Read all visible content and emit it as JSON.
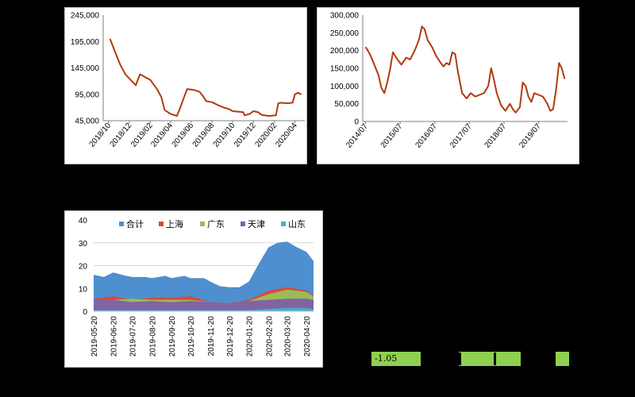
{
  "chart_data": [
    {
      "type": "line",
      "ylim": [
        45000,
        245000
      ],
      "y_ticks": [
        "245,000",
        "195,000",
        "145,000",
        "95,000",
        "45,000"
      ],
      "x_ticks": [
        "2018/10",
        "2018/12",
        "2019/02",
        "2019/04",
        "2019/06",
        "2019/08",
        "2019/10",
        "2019/12",
        "2020/02",
        "2020/04"
      ],
      "series": [
        {
          "color": "#b23a0e",
          "values": [
            [
              "2018-10-05",
              200000
            ],
            [
              "2018-10-20",
              175000
            ],
            [
              "2018-11-05",
              150000
            ],
            [
              "2018-11-20",
              132000
            ],
            [
              "2018-12-05",
              122000
            ],
            [
              "2018-12-20",
              112000
            ],
            [
              "2019-01-01",
              133000
            ],
            [
              "2019-01-15",
              128000
            ],
            [
              "2019-02-01",
              122000
            ],
            [
              "2019-02-20",
              105000
            ],
            [
              "2019-03-05",
              90000
            ],
            [
              "2019-03-15",
              65000
            ],
            [
              "2019-04-01",
              58000
            ],
            [
              "2019-04-20",
              54000
            ],
            [
              "2019-05-01",
              72000
            ],
            [
              "2019-05-10",
              88000
            ],
            [
              "2019-05-20",
              105000
            ],
            [
              "2019-06-10",
              103000
            ],
            [
              "2019-06-25",
              100000
            ],
            [
              "2019-07-05",
              92000
            ],
            [
              "2019-07-15",
              82000
            ],
            [
              "2019-08-01",
              80000
            ],
            [
              "2019-08-20",
              74000
            ],
            [
              "2019-09-05",
              70000
            ],
            [
              "2019-09-20",
              67000
            ],
            [
              "2019-10-01",
              63000
            ],
            [
              "2019-10-20",
              62000
            ],
            [
              "2019-11-01",
              61000
            ],
            [
              "2019-11-05",
              55000
            ],
            [
              "2019-11-20",
              58000
            ],
            [
              "2019-12-01",
              63000
            ],
            [
              "2019-12-15",
              61000
            ],
            [
              "2019-12-25",
              56000
            ],
            [
              "2020-01-15",
              54000
            ],
            [
              "2020-02-05",
              55000
            ],
            [
              "2020-02-12",
              78000
            ],
            [
              "2020-02-20",
              79000
            ],
            [
              "2020-03-10",
              78000
            ],
            [
              "2020-03-25",
              79000
            ],
            [
              "2020-04-01",
              95000
            ],
            [
              "2020-04-10",
              98000
            ],
            [
              "2020-04-20",
              95000
            ]
          ]
        }
      ]
    },
    {
      "type": "line",
      "ylim": [
        0,
        300000
      ],
      "y_ticks": [
        "300,000",
        "250,000",
        "200,000",
        "150,000",
        "100,000",
        "50,000",
        "0"
      ],
      "x_ticks": [
        "2014/07",
        "2015/07",
        "2016/07",
        "2017/07",
        "2018/07",
        "2019/07"
      ],
      "series": [
        {
          "color": "#b23a0e",
          "values": [
            [
              "2014-07-01",
              210000
            ],
            [
              "2014-08-15",
              190000
            ],
            [
              "2014-10-01",
              160000
            ],
            [
              "2014-11-15",
              130000
            ],
            [
              "2014-12-15",
              95000
            ],
            [
              "2015-01-15",
              80000
            ],
            [
              "2015-02-15",
              110000
            ],
            [
              "2015-03-15",
              145000
            ],
            [
              "2015-04-15",
              195000
            ],
            [
              "2015-06-01",
              175000
            ],
            [
              "2015-07-15",
              160000
            ],
            [
              "2015-09-01",
              180000
            ],
            [
              "2015-10-15",
              175000
            ],
            [
              "2015-12-01",
              200000
            ],
            [
              "2016-01-15",
              230000
            ],
            [
              "2016-02-15",
              268000
            ],
            [
              "2016-03-15",
              260000
            ],
            [
              "2016-04-15",
              230000
            ],
            [
              "2016-06-01",
              210000
            ],
            [
              "2016-07-15",
              185000
            ],
            [
              "2016-09-01",
              165000
            ],
            [
              "2016-10-01",
              155000
            ],
            [
              "2016-11-01",
              165000
            ],
            [
              "2016-12-01",
              160000
            ],
            [
              "2017-01-01",
              195000
            ],
            [
              "2017-02-01",
              190000
            ],
            [
              "2017-03-01",
              140000
            ],
            [
              "2017-04-15",
              80000
            ],
            [
              "2017-06-01",
              65000
            ],
            [
              "2017-07-15",
              80000
            ],
            [
              "2017-09-01",
              70000
            ],
            [
              "2017-10-15",
              75000
            ],
            [
              "2017-12-01",
              80000
            ],
            [
              "2018-01-15",
              100000
            ],
            [
              "2018-02-15",
              150000
            ],
            [
              "2018-03-15",
              120000
            ],
            [
              "2018-04-15",
              80000
            ],
            [
              "2018-06-01",
              45000
            ],
            [
              "2018-07-15",
              30000
            ],
            [
              "2018-09-01",
              50000
            ],
            [
              "2018-10-01",
              35000
            ],
            [
              "2018-11-01",
              25000
            ],
            [
              "2018-12-15",
              40000
            ],
            [
              "2019-01-15",
              110000
            ],
            [
              "2019-02-15",
              100000
            ],
            [
              "2019-03-15",
              70000
            ],
            [
              "2019-04-15",
              55000
            ],
            [
              "2019-05-15",
              80000
            ],
            [
              "2019-07-01",
              75000
            ],
            [
              "2019-08-15",
              70000
            ],
            [
              "2019-10-01",
              50000
            ],
            [
              "2019-11-01",
              30000
            ],
            [
              "2019-12-01",
              35000
            ],
            [
              "2020-01-01",
              90000
            ],
            [
              "2020-02-01",
              165000
            ],
            [
              "2020-03-01",
              150000
            ],
            [
              "2020-04-01",
              120000
            ]
          ]
        }
      ]
    },
    {
      "type": "area",
      "ylim": [
        0,
        40
      ],
      "y_ticks": [
        "40",
        "30",
        "20",
        "10",
        "0"
      ],
      "x_ticks": [
        "2019-05-20",
        "2019-06-20",
        "2019-07-20",
        "2019-08-20",
        "2019-09-20",
        "2019-10-20",
        "2019-11-20",
        "2019-12-20",
        "2020-01-20",
        "2020-02-20",
        "2020-03-20",
        "2020-04-20"
      ],
      "legend_position": "top",
      "series": [
        {
          "name": "合计",
          "color": "#4e8fcf",
          "values": [
            [
              "2019-05-20",
              16
            ],
            [
              "2019-06-05",
              15
            ],
            [
              "2019-06-20",
              17
            ],
            [
              "2019-07-10",
              15.5
            ],
            [
              "2019-07-20",
              15
            ],
            [
              "2019-08-10",
              15
            ],
            [
              "2019-08-20",
              14.5
            ],
            [
              "2019-09-10",
              15.5
            ],
            [
              "2019-09-20",
              14.5
            ],
            [
              "2019-10-10",
              15.5
            ],
            [
              "2019-10-20",
              14.5
            ],
            [
              "2019-11-10",
              14.5
            ],
            [
              "2019-11-20",
              13
            ],
            [
              "2019-12-05",
              11
            ],
            [
              "2019-12-20",
              10.5
            ],
            [
              "2020-01-05",
              10.5
            ],
            [
              "2020-01-20",
              13
            ],
            [
              "2020-02-05",
              21
            ],
            [
              "2020-02-20",
              28
            ],
            [
              "2020-03-05",
              30
            ],
            [
              "2020-03-20",
              30.5
            ],
            [
              "2020-04-05",
              28
            ],
            [
              "2020-04-20",
              26
            ],
            [
              "2020-05-01",
              22
            ]
          ]
        },
        {
          "name": "上海",
          "color": "#d9493a",
          "values": [
            [
              "2019-05-20",
              5.5
            ],
            [
              "2019-06-20",
              6.5
            ],
            [
              "2019-07-20",
              5
            ],
            [
              "2019-08-20",
              6
            ],
            [
              "2019-09-20",
              6
            ],
            [
              "2019-10-20",
              6.5
            ],
            [
              "2019-11-20",
              4
            ],
            [
              "2019-12-20",
              3.5
            ],
            [
              "2020-01-20",
              5
            ],
            [
              "2020-02-20",
              9
            ],
            [
              "2020-03-20",
              10.5
            ],
            [
              "2020-04-20",
              9
            ],
            [
              "2020-05-01",
              7
            ]
          ]
        },
        {
          "name": "广东",
          "color": "#9bbb59",
          "values": [
            [
              "2019-05-20",
              5
            ],
            [
              "2019-06-20",
              5
            ],
            [
              "2019-07-20",
              5.5
            ],
            [
              "2019-08-20",
              5
            ],
            [
              "2019-09-20",
              5
            ],
            [
              "2019-10-20",
              5
            ],
            [
              "2019-11-20",
              4
            ],
            [
              "2019-12-20",
              3.5
            ],
            [
              "2020-01-20",
              4.5
            ],
            [
              "2020-02-20",
              7.5
            ],
            [
              "2020-03-20",
              9.5
            ],
            [
              "2020-04-20",
              8.5
            ],
            [
              "2020-05-01",
              6.5
            ]
          ]
        },
        {
          "name": "天津",
          "color": "#8064a2",
          "values": [
            [
              "2019-05-20",
              5.5
            ],
            [
              "2019-06-20",
              5
            ],
            [
              "2019-07-20",
              4
            ],
            [
              "2019-08-20",
              4.5
            ],
            [
              "2019-09-20",
              4
            ],
            [
              "2019-10-20",
              4.5
            ],
            [
              "2019-11-20",
              4
            ],
            [
              "2019-12-20",
              3.5
            ],
            [
              "2020-01-20",
              4.5
            ],
            [
              "2020-02-20",
              5
            ],
            [
              "2020-03-20",
              5.5
            ],
            [
              "2020-04-20",
              5.5
            ],
            [
              "2020-05-01",
              5
            ]
          ]
        },
        {
          "name": "山东",
          "color": "#4bacc6",
          "values": [
            [
              "2019-05-20",
              0.5
            ],
            [
              "2019-06-20",
              0.5
            ],
            [
              "2019-07-20",
              0.5
            ],
            [
              "2019-08-20",
              0.5
            ],
            [
              "2019-09-20",
              0.5
            ],
            [
              "2019-10-20",
              0.5
            ],
            [
              "2019-11-20",
              0.5
            ],
            [
              "2019-12-20",
              0.5
            ],
            [
              "2020-01-20",
              0.5
            ],
            [
              "2020-02-20",
              1
            ],
            [
              "2020-03-20",
              1.5
            ],
            [
              "2020-04-20",
              1.5
            ],
            [
              "2020-05-01",
              1
            ]
          ]
        }
      ]
    }
  ],
  "footer_strip": {
    "value_text": "-1.05",
    "color": "#8fd14f"
  }
}
